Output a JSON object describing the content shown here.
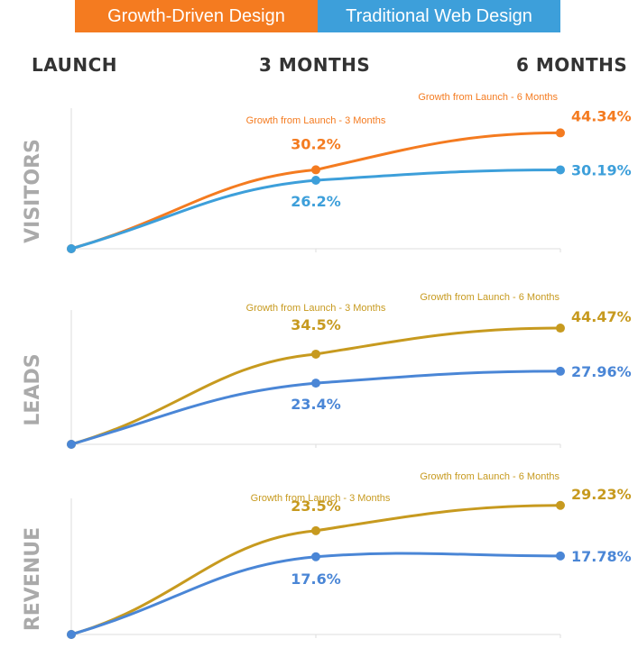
{
  "legend": {
    "growth_driven": "Growth-Driven Design",
    "traditional": "Traditional Web Design"
  },
  "columns": [
    "LAUNCH",
    "3 MONTHS",
    "6 MONTHS"
  ],
  "colors": {
    "growth_driven": "#f47b20",
    "traditional": "#3d9fda",
    "growth_driven_alt": "#c79a1f",
    "traditional_alt": "#4a86d6",
    "row_label": "#aaaaaa",
    "grid": "#dddddd"
  },
  "chart_data": [
    {
      "type": "line",
      "title": "VISITORS",
      "categories": [
        "LAUNCH",
        "3 MONTHS",
        "6 MONTHS"
      ],
      "series": [
        {
          "name": "Growth-Driven Design",
          "values": [
            0,
            30.2,
            44.34
          ],
          "labels": [
            "",
            "30.2%",
            "44.34%"
          ],
          "color": "#f47b20"
        },
        {
          "name": "Traditional Web Design",
          "values": [
            0,
            26.2,
            30.19
          ],
          "labels": [
            "",
            "26.2%",
            "30.19%"
          ],
          "color": "#3d9fda"
        }
      ],
      "annotations": [
        "Growth from Launch - 3 Months",
        "Growth from Launch - 6 Months"
      ]
    },
    {
      "type": "line",
      "title": "LEADS",
      "categories": [
        "LAUNCH",
        "3 MONTHS",
        "6 MONTHS"
      ],
      "series": [
        {
          "name": "Growth-Driven Design",
          "values": [
            0,
            34.5,
            44.47
          ],
          "labels": [
            "",
            "34.5%",
            "44.47%"
          ],
          "color": "#c79a1f"
        },
        {
          "name": "Traditional Web Design",
          "values": [
            0,
            23.4,
            27.96
          ],
          "labels": [
            "",
            "23.4%",
            "27.96%"
          ],
          "color": "#4a86d6"
        }
      ],
      "annotations": [
        "Growth from Launch - 3 Months",
        "Growth from Launch - 6 Months"
      ]
    },
    {
      "type": "line",
      "title": "REVENUE",
      "categories": [
        "LAUNCH",
        "3 MONTHS",
        "6 MONTHS"
      ],
      "series": [
        {
          "name": "Growth-Driven Design",
          "values": [
            0,
            23.5,
            29.23
          ],
          "labels": [
            "",
            "23.5%",
            "29.23%"
          ],
          "color": "#c79a1f"
        },
        {
          "name": "Traditional Web Design",
          "values": [
            0,
            17.6,
            17.78
          ],
          "labels": [
            "",
            "17.6%",
            "17.78%"
          ],
          "color": "#4a86d6"
        }
      ],
      "annotations": [
        "Growth from Launch - 3 Months",
        "Growth from Launch - 6 Months"
      ]
    }
  ]
}
